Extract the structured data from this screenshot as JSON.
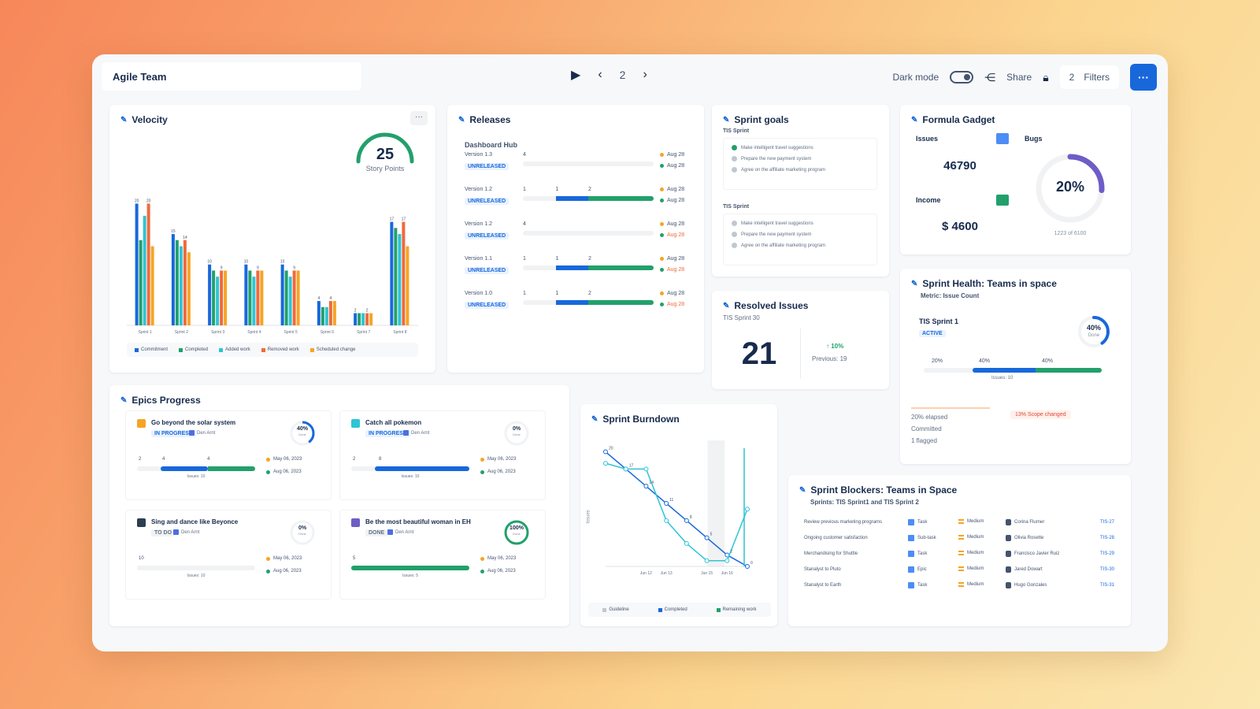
{
  "header": {
    "title": "Agile Team",
    "page": "2",
    "dark_mode_label": "Dark mode",
    "share_label": "Share",
    "filters_count": "2",
    "filters_label": "Filters"
  },
  "velocity": {
    "title": "Velocity",
    "gauge_value": "25",
    "gauge_label": "Story Points",
    "chart_data": {
      "type": "bar",
      "categories": [
        "Sprint 1",
        "Sprint 2",
        "Sprint 3",
        "Sprint 4",
        "Sprint 5",
        "Sprint 6",
        "Sprint 7",
        "Sprint 8"
      ],
      "series": [
        {
          "name": "Commitment",
          "color": "#1868db",
          "values": [
            20,
            15,
            10,
            10,
            10,
            4,
            2,
            17
          ]
        },
        {
          "name": "Completed",
          "color": "#22a06b",
          "values": [
            14,
            14,
            9,
            9,
            9,
            3,
            2,
            16
          ]
        },
        {
          "name": "Added work",
          "color": "#2ec4d6",
          "values": [
            18,
            13,
            8,
            8,
            8,
            3,
            2,
            15
          ]
        },
        {
          "name": "Removed work",
          "color": "#f06a3c",
          "values": [
            20,
            14,
            9,
            9,
            9,
            4,
            2,
            17
          ]
        },
        {
          "name": "Scheduled change",
          "color": "#f5a524",
          "values": [
            13,
            12,
            9,
            9,
            9,
            4,
            2,
            13
          ]
        }
      ],
      "ylim": [
        0,
        22
      ]
    }
  },
  "releases": {
    "title": "Releases",
    "group": "Dashboard Hub",
    "items": [
      {
        "version": "Version 1.3",
        "status": "UNRELEASED",
        "labels": [
          "4"
        ],
        "split": [
          0.0,
          0.0
        ],
        "date1": "Aug 28",
        "date2": "Aug 28",
        "late": false
      },
      {
        "version": "Version 1.2",
        "status": "UNRELEASED",
        "labels": [
          "1",
          "1",
          "2"
        ],
        "split": [
          0.25,
          0.5
        ],
        "date1": "Aug 28",
        "date2": "Aug 28",
        "late": false
      },
      {
        "version": "Version 1.2",
        "status": "UNRELEASED",
        "labels": [
          "4"
        ],
        "split": [
          0.0,
          0.0
        ],
        "date1": "Aug 28",
        "date2": "Aug 28",
        "late": true
      },
      {
        "version": "Version 1.1",
        "status": "UNRELEASED",
        "labels": [
          "1",
          "1",
          "2"
        ],
        "split": [
          0.25,
          0.5
        ],
        "date1": "Aug 28",
        "date2": "Aug 28",
        "late": true
      },
      {
        "version": "Version 1.0",
        "status": "UNRELEASED",
        "labels": [
          "1",
          "1",
          "2"
        ],
        "split": [
          0.25,
          0.5
        ],
        "date1": "Aug 28",
        "date2": "Aug 28",
        "late": true
      }
    ]
  },
  "sprint_goals": {
    "title": "Sprint goals",
    "groups": [
      {
        "name": "TIS Sprint",
        "goals": [
          "Make intelligent travel suggestions",
          "Prepare the new payment system",
          "Agree on the affiliate marketing program"
        ]
      },
      {
        "name": "TIS Sprint",
        "goals": [
          "Make intelligent travel suggestions",
          "Prepare the new payment system",
          "Agree on the affiliate marketing program"
        ]
      }
    ]
  },
  "formula": {
    "title": "Formula Gadget",
    "issues_label": "Issues",
    "issues_value": "46790",
    "income_label": "Income",
    "income_value": "$ 4600",
    "bugs_label": "Bugs",
    "bugs_value": "20%",
    "bugs_fraction": 0.2,
    "bugs_caption": "1223 of 6100"
  },
  "resolved": {
    "title": "Resolved Issues",
    "subtitle": "TIS Sprint 30",
    "value": "21",
    "change": "10%",
    "previous": "Previous: 19"
  },
  "health": {
    "title": "Sprint Health: Teams in space",
    "metric": "Metric: Issue Count",
    "sprint": "TIS Sprint 1",
    "badge": "ACTIVE",
    "pct": "40%",
    "pct_caption": "Done",
    "pct_fraction": 0.4,
    "seg_labels": [
      "20%",
      "40%",
      "40%"
    ],
    "issues_caption": "Issues: 10",
    "notes": [
      "20% elapsed",
      "Committed",
      "1 flagged"
    ],
    "alert": "13% Scope changed"
  },
  "epics": {
    "title": "Epics Progress",
    "items": [
      {
        "name": "Go beyond the solar system",
        "color": "#f5a524",
        "status": "IN PROGRESS",
        "assignee": "Den Arnt",
        "pct": "40%",
        "pct_caption": "Done",
        "fraction": 0.4,
        "labels": [
          "2",
          "4",
          "4"
        ],
        "split": [
          0.2,
          0.6
        ],
        "date1": "May 06, 2023",
        "date2": "Aug 06, 2023",
        "issues": "Issues: 10"
      },
      {
        "name": "Catch all pokemon",
        "color": "#2ec4d6",
        "status": "IN PROGRESS",
        "assignee": "Den Arnt",
        "pct": "0%",
        "pct_caption": "Done",
        "fraction": 0.0,
        "labels": [
          "2",
          "8"
        ],
        "split": [
          0.2,
          1.0
        ],
        "date1": "May 06, 2023",
        "date2": "Aug 06, 2023",
        "issues": "Issues: 10"
      },
      {
        "name": "Sing and dance like Beyonce",
        "color": "#2c3e50",
        "status": "TO DO",
        "assignee": "Den Arnt",
        "pct": "0%",
        "pct_caption": "Done",
        "fraction": 0.0,
        "labels": [
          "10"
        ],
        "split": [
          0.0,
          0.0
        ],
        "date1": "May 06, 2023",
        "date2": "Aug 06, 2023",
        "issues": "Issues: 10"
      },
      {
        "name": "Be the most beautiful woman in EH",
        "color": "#6e5dc6",
        "status": "DONE",
        "assignee": "Den Arnt",
        "pct": "100%",
        "pct_caption": "Done",
        "fraction": 1.0,
        "labels": [
          "5"
        ],
        "split": [
          0.0,
          1.0
        ],
        "date1": "May 06, 2023",
        "date2": "Aug 06, 2023",
        "issues": "Issues: 5"
      }
    ]
  },
  "burndown": {
    "title": "Sprint Burndown",
    "ylabel": "Issues",
    "chart_data": {
      "type": "line",
      "categories": [
        "Jun 10",
        "Jun 11",
        "Jun 12",
        "Jun 13",
        "Jun 14",
        "Jun 15",
        "Jun 16",
        "Jun 17"
      ],
      "series": [
        {
          "name": "Guideline",
          "color": "#1868db",
          "values": [
            20,
            17,
            14,
            11,
            8,
            5,
            2,
            0
          ]
        },
        {
          "name": "Remaining work",
          "color": "#2ec4d6",
          "values": [
            18,
            17,
            17,
            8,
            4,
            1,
            1,
            10
          ]
        }
      ],
      "point_labels": [
        "20",
        "18",
        "17",
        "14",
        "11",
        "8",
        "5",
        "2",
        "10"
      ],
      "ylim": [
        0,
        22
      ]
    },
    "legend": [
      "Guideline",
      "Completed",
      "Remaining work"
    ]
  },
  "blockers": {
    "title": "Sprint Blockers: Teams in Space",
    "subtitle": "Sprints: TIS Sprint1 and TIS Sprint 2",
    "rows": [
      {
        "summary": "Review previous marketing programs",
        "type": "Task",
        "priority": "Medium",
        "assignee": "Corina Flurner",
        "key": "TIS-27"
      },
      {
        "summary": "Ongoing customer satisfaction",
        "type": "Sub-task",
        "priority": "Medium",
        "assignee": "Olivia Rosette",
        "key": "TIS-28"
      },
      {
        "summary": "Merchandising for Shuttle",
        "type": "Task",
        "priority": "Medium",
        "assignee": "Francisco Javier Ruiz",
        "key": "TIS-29"
      },
      {
        "summary": "Stanalyst to Pluto",
        "type": "Epic",
        "priority": "Medium",
        "assignee": "Jared Dowart",
        "key": "TIS-30"
      },
      {
        "summary": "Stanalyst to Earth",
        "type": "Task",
        "priority": "Medium",
        "assignee": "Hugo Gonzales",
        "key": "TIS-31"
      }
    ]
  }
}
